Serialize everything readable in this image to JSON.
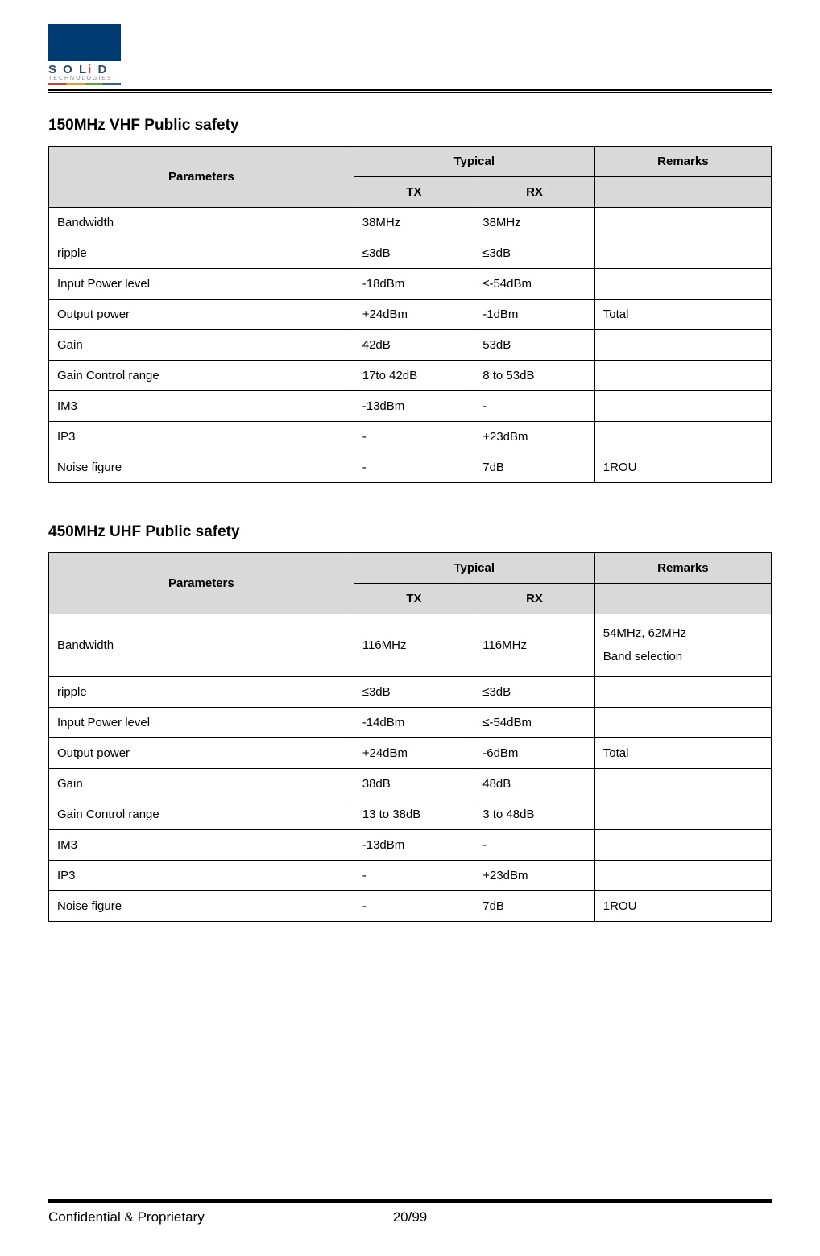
{
  "logo": {
    "brand_prefix": "S O L",
    "brand_i": "i",
    "brand_suffix": " D",
    "subtext": "TECHNOLOGIES"
  },
  "section1": {
    "title": "150MHz VHF Public safety",
    "headers": {
      "parameters": "Parameters",
      "typical": "Typical",
      "remarks": "Remarks",
      "tx": "TX",
      "rx": "RX"
    },
    "rows": [
      {
        "param": "Bandwidth",
        "tx": "38MHz",
        "rx": "38MHz",
        "remarks": ""
      },
      {
        "param": "ripple",
        "tx": "≤3dB",
        "rx": "≤3dB",
        "remarks": ""
      },
      {
        "param": "Input Power level",
        "tx": "-18dBm",
        "rx": "≤-54dBm",
        "remarks": ""
      },
      {
        "param": "Output power",
        "tx": "+24dBm",
        "rx": "-1dBm",
        "remarks": "Total"
      },
      {
        "param": "Gain",
        "tx": "42dB",
        "rx": "53dB",
        "remarks": ""
      },
      {
        "param": "Gain Control range",
        "tx": "17to 42dB",
        "rx": "8 to 53dB",
        "remarks": ""
      },
      {
        "param": "IM3",
        "tx": "-13dBm",
        "rx": "-",
        "remarks": ""
      },
      {
        "param": "IP3",
        "tx": "-",
        "rx": "+23dBm",
        "remarks": ""
      },
      {
        "param": "Noise figure",
        "tx": "-",
        "rx": "7dB",
        "remarks": "1ROU"
      }
    ]
  },
  "section2": {
    "title": "450MHz UHF Public safety",
    "headers": {
      "parameters": "Parameters",
      "typical": "Typical",
      "remarks": "Remarks",
      "tx": "TX",
      "rx": "RX"
    },
    "rows": [
      {
        "param": "Bandwidth",
        "tx": "116MHz",
        "rx": "116MHz",
        "remarks": "54MHz, 62MHz\nBand selection"
      },
      {
        "param": "ripple",
        "tx": "≤3dB",
        "rx": "≤3dB",
        "remarks": ""
      },
      {
        "param": "Input Power level",
        "tx": "-14dBm",
        "rx": "≤-54dBm",
        "remarks": ""
      },
      {
        "param": "Output power",
        "tx": "+24dBm",
        "rx": "-6dBm",
        "remarks": "Total"
      },
      {
        "param": "Gain",
        "tx": "38dB",
        "rx": "48dB",
        "remarks": ""
      },
      {
        "param": "Gain Control range",
        "tx": "13 to 38dB",
        "rx": "3 to 48dB",
        "remarks": ""
      },
      {
        "param": "IM3",
        "tx": "-13dBm",
        "rx": "-",
        "remarks": ""
      },
      {
        "param": "IP3",
        "tx": "-",
        "rx": "+23dBm",
        "remarks": ""
      },
      {
        "param": "Noise figure",
        "tx": "-",
        "rx": "7dB",
        "remarks": "1ROU"
      }
    ]
  },
  "footer": {
    "left": "Confidential & Proprietary",
    "center": "20/99"
  }
}
